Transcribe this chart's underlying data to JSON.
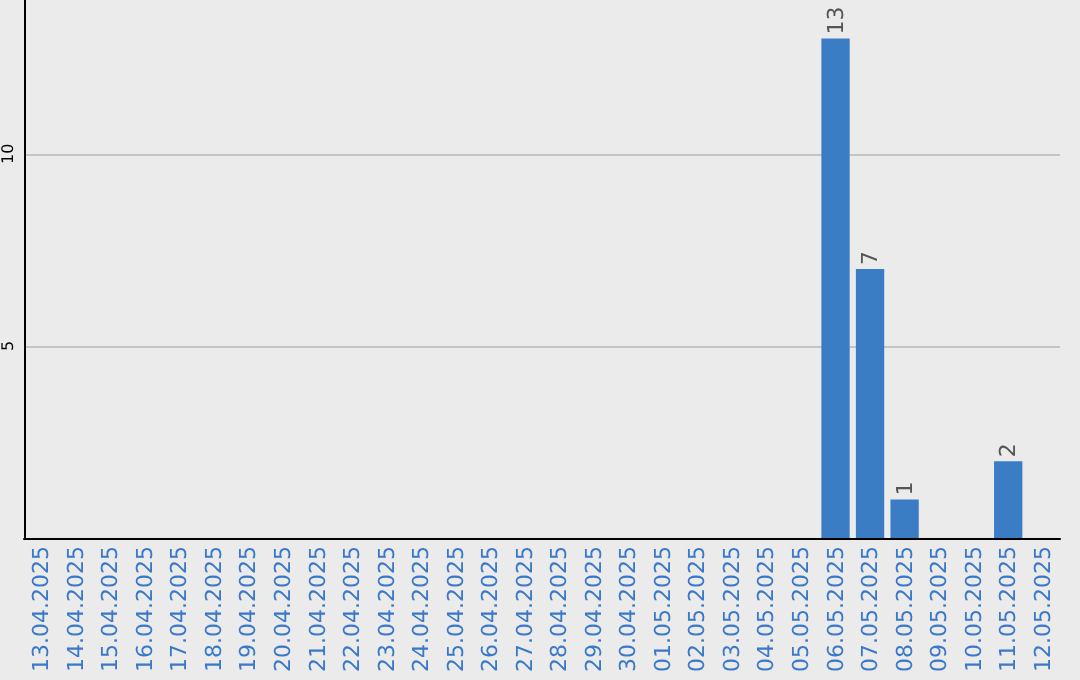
{
  "chart_data": {
    "type": "bar",
    "categories": [
      "13.04.2025",
      "14.04.2025",
      "15.04.2025",
      "16.04.2025",
      "17.04.2025",
      "18.04.2025",
      "19.04.2025",
      "20.04.2025",
      "21.04.2025",
      "22.04.2025",
      "23.04.2025",
      "24.04.2025",
      "25.04.2025",
      "26.04.2025",
      "27.04.2025",
      "28.04.2025",
      "29.04.2025",
      "30.04.2025",
      "01.05.2025",
      "02.05.2025",
      "03.05.2025",
      "04.05.2025",
      "05.05.2025",
      "06.05.2025",
      "07.05.2025",
      "08.05.2025",
      "09.05.2025",
      "10.05.2025",
      "11.05.2025",
      "12.05.2025"
    ],
    "values": [
      0,
      0,
      0,
      0,
      0,
      0,
      0,
      0,
      0,
      0,
      0,
      0,
      0,
      0,
      0,
      0,
      0,
      0,
      0,
      0,
      0,
      0,
      0,
      13,
      7,
      1,
      0,
      0,
      2,
      0
    ],
    "value_labels": [
      null,
      null,
      null,
      null,
      null,
      null,
      null,
      null,
      null,
      null,
      null,
      null,
      null,
      null,
      null,
      null,
      null,
      null,
      null,
      null,
      null,
      null,
      null,
      "13",
      "7",
      "1",
      null,
      null,
      "2",
      null
    ],
    "color": "#3b7dc4",
    "ylim": [
      0,
      14
    ],
    "yticks": [
      5,
      10
    ],
    "grid": "y"
  }
}
